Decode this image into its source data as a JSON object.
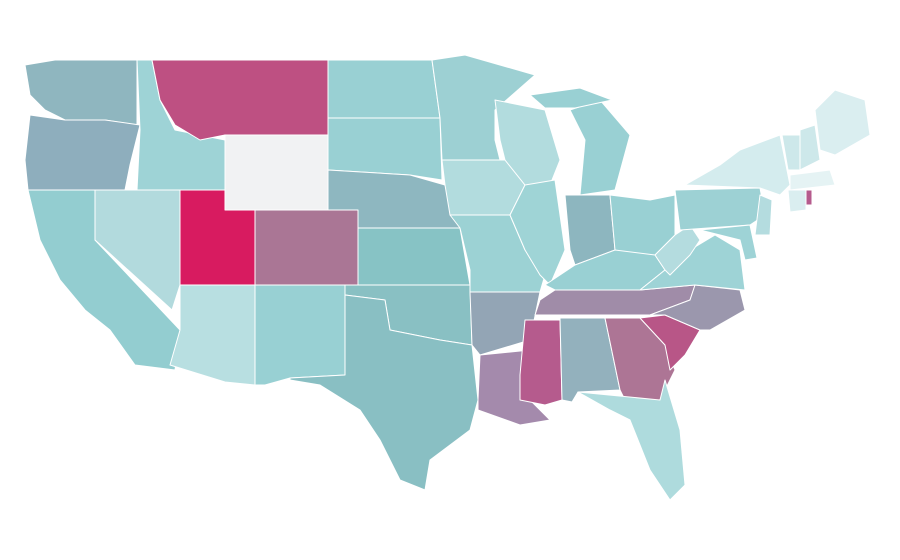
{
  "map": {
    "regions": [
      {
        "color": "#8fb6bf"
      },
      {
        "color": "#8eaebd"
      },
      {
        "color": "#93cdd0"
      },
      {
        "color": "#b2dadd"
      },
      {
        "color": "#9ed3d6"
      },
      {
        "color": "#be5082"
      },
      {
        "color": "#f1f2f3"
      },
      {
        "color": "#d81b60"
      },
      {
        "color": "#aa7695"
      },
      {
        "color": "#b8dfe1"
      },
      {
        "color": "#98d0d3"
      },
      {
        "color": "#99d0d3"
      },
      {
        "color": "#99d0d3"
      },
      {
        "color": "#8eb7c0"
      },
      {
        "color": "#87c3c5"
      },
      {
        "color": "#89c0c3"
      },
      {
        "color": "#89bfc3"
      },
      {
        "color": "#9dd0d3"
      },
      {
        "color": "#b2dcde"
      },
      {
        "color": "#9cd2d4"
      },
      {
        "color": "#93a5b5"
      },
      {
        "color": "#a48aac"
      },
      {
        "color": "#b2dcde"
      },
      {
        "color": "#9fd4d6"
      },
      {
        "color": "#99d0d3"
      },
      {
        "color": "#8db6bf"
      },
      {
        "color": "#99d0d3"
      },
      {
        "color": "#99d0d3"
      },
      {
        "color": "#a08ca8"
      },
      {
        "color": "#b55b8d"
      },
      {
        "color": "#93b1bd"
      },
      {
        "color": "#ad7595"
      },
      {
        "color": "#aedbdd"
      },
      {
        "color": "#b85687"
      },
      {
        "color": "#9b97ad"
      },
      {
        "color": "#9ed3d6"
      },
      {
        "color": "#b4dcdf"
      },
      {
        "color": "#9dd1d4"
      },
      {
        "color": "#d4ecee"
      },
      {
        "color": "#daeef0"
      },
      {
        "color": "#cde8ea"
      },
      {
        "color": "#cde8ea"
      },
      {
        "color": "#e5f3f4"
      },
      {
        "color": "#daeef0"
      },
      {
        "color": "#b55b8d"
      },
      {
        "color": "#b4dcdf"
      },
      {
        "color": "#9ed3d6"
      }
    ]
  }
}
